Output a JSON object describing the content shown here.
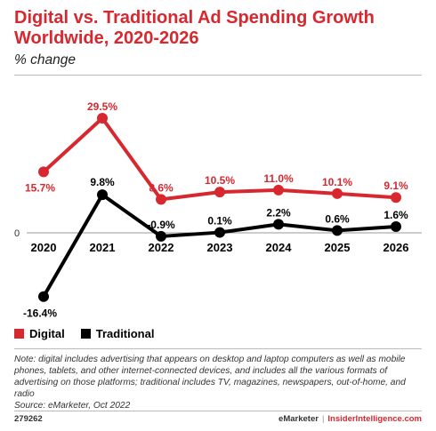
{
  "header": {
    "title": "Digital vs. Traditional Ad Spending Growth Worldwide, 2020-2026",
    "subtitle": "% change"
  },
  "chart_data": {
    "type": "line",
    "title": "Digital vs. Traditional Ad Spending Growth Worldwide, 2020-2026",
    "subtitle": "% change",
    "categories": [
      "2020",
      "2021",
      "2022",
      "2023",
      "2024",
      "2025",
      "2026"
    ],
    "series": [
      {
        "name": "Digital",
        "color": "#d7282f",
        "values": [
          15.7,
          29.5,
          8.6,
          10.5,
          11.0,
          10.1,
          9.1
        ],
        "labels": [
          "15.7%",
          "29.5%",
          "8.6%",
          "10.5%",
          "11.0%",
          "10.1%",
          "9.1%"
        ]
      },
      {
        "name": "Traditional",
        "color": "#000000",
        "values": [
          -16.4,
          9.8,
          -0.9,
          0.1,
          2.2,
          0.6,
          1.6
        ],
        "labels": [
          "-16.4%",
          "9.8%",
          "-0.9%",
          "0.1%",
          "2.2%",
          "0.6%",
          "1.6%"
        ]
      }
    ],
    "y_ticks": [
      "0"
    ],
    "ylim": [
      -17,
      30
    ],
    "grid": false,
    "legend": "bottom-left"
  },
  "note": "Note: digital includes advertising that appears on desktop and laptop computers as well as mobile phones, tablets, and other internet-connected devices, and includes all the various formats of advertising on those platforms; traditional includes TV, magazines, newspapers, out-of-home, and radio",
  "source": "Source: eMarketer, Oct 2022",
  "footer": {
    "chart_id": "279262",
    "brand": "eMarketer",
    "separator": "|",
    "brand2": "InsiderIntelligence.com"
  }
}
